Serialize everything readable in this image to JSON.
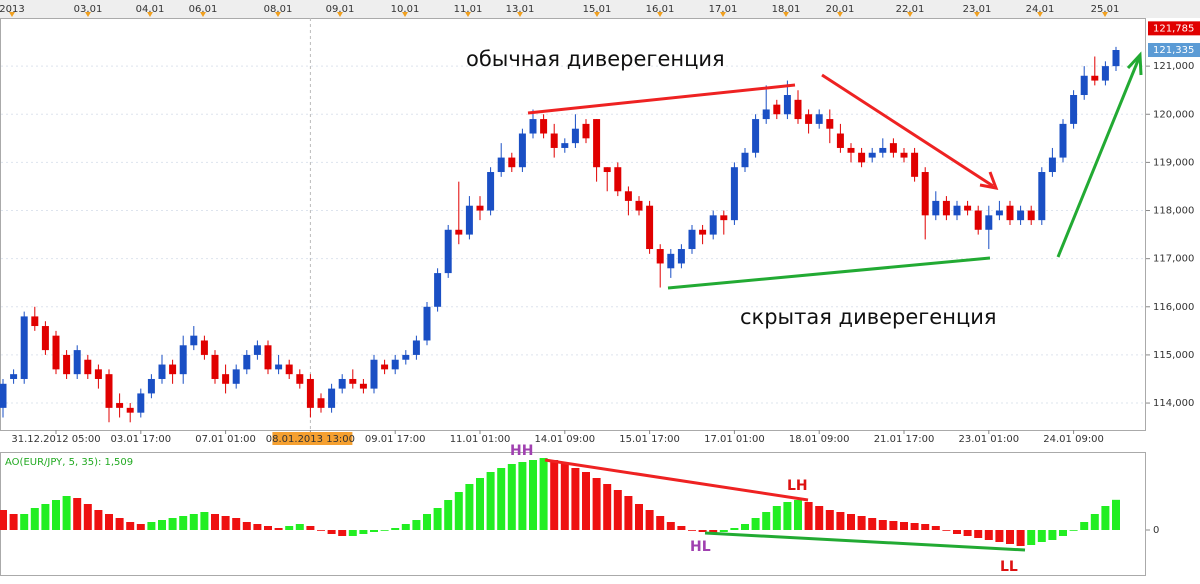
{
  "chart_data": [
    {
      "type": "candlestick",
      "annotations": [
        "обычная диверегенция",
        "скрытая диверегенция"
      ],
      "top_axis_labels": [
        "2013",
        "03.01",
        "04.01",
        "06.01",
        "08.01",
        "09.01",
        "10.01",
        "11.01",
        "13.01",
        "15.01",
        "16.01",
        "17.01",
        "18.01",
        "20.01",
        "22.01",
        "23.01",
        "24.01",
        "25.01"
      ],
      "categories": [
        null,
        null,
        null,
        null,
        null,
        "31.12.2012 05:00",
        null,
        null,
        null,
        null,
        null,
        null,
        null,
        "03.01 17:00",
        null,
        null,
        null,
        null,
        null,
        null,
        null,
        "07.01 01:00",
        null,
        null,
        null,
        null,
        null,
        null,
        null,
        "08.01.2013 13:00",
        null,
        null,
        null,
        null,
        null,
        null,
        null,
        "09.01 17:00",
        null,
        null,
        null,
        null,
        null,
        null,
        null,
        "11.01 01:00",
        null,
        null,
        null,
        null,
        null,
        null,
        null,
        "14.01 09:00",
        null,
        null,
        null,
        null,
        null,
        null,
        null,
        "15.01 17:00",
        null,
        null,
        null,
        null,
        null,
        null,
        null,
        "17.01 01:00",
        null,
        null,
        null,
        null,
        null,
        null,
        null,
        "18.01 09:00",
        null,
        null,
        null,
        null,
        null,
        null,
        null,
        "21.01 17:00",
        null,
        null,
        null,
        null,
        null,
        null,
        null,
        "23.01 01:00",
        null,
        null,
        null,
        null,
        null,
        null,
        null,
        "24.01 09:00",
        null,
        null,
        null,
        null
      ],
      "open": [
        113.9,
        114.5,
        114.5,
        115.8,
        115.6,
        115.4,
        115.0,
        114.6,
        114.9,
        114.7,
        114.6,
        114.0,
        113.9,
        113.8,
        114.2,
        114.5,
        114.8,
        114.6,
        115.2,
        115.3,
        115.0,
        114.6,
        114.4,
        114.7,
        115.0,
        115.2,
        114.7,
        114.8,
        114.6,
        114.5,
        114.1,
        113.9,
        114.3,
        114.5,
        114.4,
        114.3,
        114.8,
        114.7,
        114.9,
        115.0,
        115.3,
        116.0,
        116.7,
        117.6,
        117.5,
        118.1,
        118.0,
        118.8,
        119.1,
        118.9,
        119.6,
        119.9,
        119.6,
        119.3,
        119.4,
        119.8,
        119.9,
        118.9,
        118.9,
        118.4,
        118.2,
        118.1,
        117.2,
        116.8,
        116.9,
        117.2,
        117.6,
        117.5,
        117.9,
        117.8,
        118.9,
        119.2,
        119.9,
        120.2,
        120.0,
        120.3,
        120.0,
        119.8,
        119.9,
        119.6,
        119.3,
        119.2,
        119.1,
        119.2,
        119.4,
        119.2,
        119.2,
        118.8,
        117.9,
        118.2,
        117.9,
        118.1,
        118.0,
        117.6,
        117.9,
        118.1,
        117.8,
        118.0,
        117.8,
        118.8,
        119.1,
        119.8,
        120.4,
        120.8,
        120.7,
        121.0
      ],
      "high": [
        114.5,
        114.7,
        115.9,
        116.0,
        115.7,
        115.5,
        115.1,
        115.2,
        115.0,
        114.8,
        114.7,
        114.2,
        114.0,
        114.3,
        114.6,
        115.0,
        114.9,
        115.4,
        115.6,
        115.4,
        115.1,
        114.8,
        114.8,
        115.1,
        115.3,
        115.3,
        115.0,
        114.9,
        114.7,
        114.6,
        114.2,
        114.4,
        114.6,
        114.7,
        114.5,
        115.0,
        114.9,
        115.0,
        115.1,
        115.4,
        116.1,
        116.8,
        117.7,
        118.6,
        118.3,
        118.3,
        118.9,
        119.4,
        119.2,
        119.7,
        120.1,
        120.0,
        119.8,
        119.5,
        120.0,
        119.9,
        119.9,
        118.9,
        119.0,
        118.5,
        118.3,
        118.2,
        117.3,
        117.2,
        117.3,
        117.7,
        117.7,
        118.0,
        118.0,
        119.0,
        119.3,
        120.0,
        120.6,
        120.3,
        120.7,
        120.5,
        120.1,
        120.1,
        120.1,
        119.8,
        119.4,
        119.3,
        119.3,
        119.5,
        119.5,
        119.3,
        119.3,
        118.9,
        118.4,
        118.3,
        118.2,
        118.2,
        118.1,
        118.1,
        118.2,
        118.2,
        118.1,
        118.1,
        118.9,
        119.3,
        119.9,
        120.5,
        121.0,
        121.2,
        121.1,
        121.4
      ],
      "low": [
        113.7,
        114.4,
        114.4,
        115.5,
        115.0,
        114.6,
        114.5,
        114.5,
        114.5,
        114.3,
        113.6,
        113.7,
        113.6,
        113.7,
        114.1,
        114.4,
        114.4,
        114.4,
        115.1,
        114.9,
        114.4,
        114.2,
        114.3,
        114.6,
        114.9,
        114.6,
        114.6,
        114.5,
        114.3,
        113.7,
        113.8,
        113.8,
        114.2,
        114.3,
        114.2,
        114.2,
        114.6,
        114.6,
        114.8,
        114.9,
        115.2,
        115.9,
        116.6,
        117.3,
        117.4,
        117.8,
        117.9,
        118.7,
        118.8,
        118.8,
        119.5,
        119.5,
        119.1,
        119.2,
        119.3,
        119.4,
        118.6,
        118.4,
        118.3,
        117.9,
        117.9,
        117.1,
        116.4,
        116.6,
        116.8,
        117.1,
        117.3,
        117.4,
        117.5,
        117.7,
        118.8,
        119.1,
        119.8,
        119.9,
        119.9,
        119.8,
        119.6,
        119.7,
        119.4,
        119.2,
        119.0,
        118.9,
        119.0,
        119.1,
        119.1,
        119.0,
        118.6,
        117.4,
        117.8,
        117.8,
        117.8,
        117.9,
        117.5,
        117.2,
        117.8,
        117.7,
        117.7,
        117.7,
        117.7,
        118.7,
        119.0,
        119.7,
        120.3,
        120.6,
        120.6,
        120.9
      ],
      "close": [
        114.4,
        114.6,
        115.8,
        115.6,
        115.1,
        114.7,
        114.6,
        115.1,
        114.6,
        114.5,
        113.9,
        113.9,
        113.8,
        114.2,
        114.5,
        114.8,
        114.6,
        115.2,
        115.4,
        115.0,
        114.5,
        114.4,
        114.7,
        115.0,
        115.2,
        114.7,
        114.8,
        114.6,
        114.4,
        113.9,
        113.9,
        114.3,
        114.5,
        114.4,
        114.3,
        114.9,
        114.7,
        114.9,
        115.0,
        115.3,
        116.0,
        116.7,
        117.6,
        117.5,
        118.1,
        118.0,
        118.8,
        119.1,
        118.9,
        119.6,
        119.9,
        119.6,
        119.3,
        119.4,
        119.7,
        119.5,
        118.9,
        118.8,
        118.4,
        118.2,
        118.0,
        117.2,
        116.9,
        117.1,
        117.2,
        117.6,
        117.5,
        117.9,
        117.8,
        118.9,
        119.2,
        119.9,
        120.1,
        120.0,
        120.4,
        119.9,
        119.8,
        120.0,
        119.7,
        119.3,
        119.2,
        119.0,
        119.2,
        119.3,
        119.2,
        119.1,
        118.7,
        117.9,
        118.2,
        117.9,
        118.1,
        118.0,
        117.6,
        117.9,
        118.0,
        117.8,
        118.0,
        117.8,
        118.8,
        119.1,
        119.8,
        120.4,
        120.8,
        120.7,
        121.0,
        121.335
      ],
      "up_color": "#1a4fc4",
      "down_color": "#e00000",
      "ylim": [
        113.44,
        122.0
      ],
      "yticks": [
        {
          "value": 114,
          "label": "114,000"
        },
        {
          "value": 115,
          "label": "115,000"
        },
        {
          "value": 116,
          "label": "116,000"
        },
        {
          "value": 117,
          "label": "117,000"
        },
        {
          "value": 118,
          "label": "118,000"
        },
        {
          "value": 119,
          "label": "119,000"
        },
        {
          "value": 120,
          "label": "120,000"
        },
        {
          "value": 121,
          "label": "121,000"
        }
      ],
      "price_tags": [
        {
          "value": 121.785,
          "label": "121,785",
          "color": "#e00000"
        },
        {
          "value": 121.335,
          "label": "121,335",
          "color": "#5b9bd5"
        }
      ],
      "grid": true
    },
    {
      "type": "bar",
      "title": "AO(EUR/JPY, 5, 35): 1,509",
      "annotations": [
        "HH",
        "LH",
        "HL",
        "LL"
      ],
      "values": [
        1.0,
        0.8,
        0.8,
        1.1,
        1.3,
        1.5,
        1.7,
        1.6,
        1.3,
        1.0,
        0.8,
        0.6,
        0.4,
        0.3,
        0.4,
        0.5,
        0.6,
        0.7,
        0.8,
        0.9,
        0.8,
        0.7,
        0.6,
        0.4,
        0.3,
        0.2,
        0.1,
        0.2,
        0.3,
        0.2,
        0.0,
        -0.2,
        -0.3,
        -0.3,
        -0.2,
        -0.1,
        0.0,
        0.1,
        0.3,
        0.5,
        0.8,
        1.1,
        1.5,
        1.9,
        2.3,
        2.6,
        2.9,
        3.1,
        3.3,
        3.4,
        3.5,
        3.6,
        3.5,
        3.3,
        3.1,
        2.9,
        2.6,
        2.3,
        2.0,
        1.7,
        1.3,
        1.0,
        0.7,
        0.4,
        0.2,
        0.0,
        -0.1,
        -0.2,
        -0.1,
        0.1,
        0.3,
        0.6,
        0.9,
        1.2,
        1.4,
        1.5,
        1.4,
        1.2,
        1.0,
        0.9,
        0.8,
        0.7,
        0.6,
        0.5,
        0.45,
        0.4,
        0.35,
        0.3,
        0.2,
        0.0,
        -0.2,
        -0.3,
        -0.4,
        -0.5,
        -0.6,
        -0.7,
        -0.8,
        -0.75,
        -0.6,
        -0.5,
        -0.3,
        0.0,
        0.4,
        0.8,
        1.2,
        1.509
      ],
      "up_color": "#22ee22",
      "down_color": "#ee1111",
      "ylim": [
        -2.25,
        3.75
      ],
      "yticks": [
        0
      ]
    }
  ]
}
